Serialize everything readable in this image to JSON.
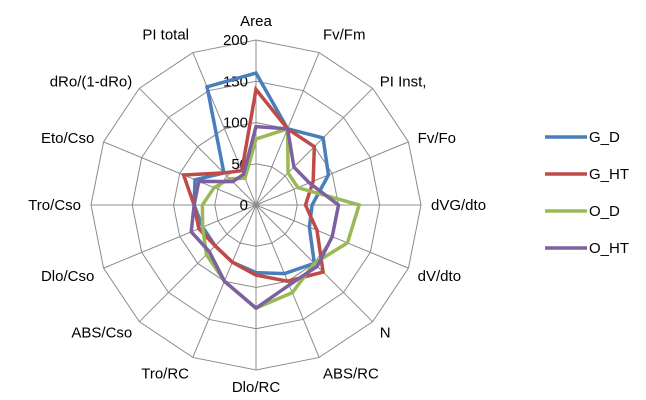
{
  "chart_data": {
    "type": "radar",
    "axes": [
      "Area",
      "Fv/Fm",
      "PI Inst,",
      "Fv/Fo",
      "dVG/dto",
      "dV/dto",
      "N",
      "ABS/RC",
      "Dlo/RC",
      "Tro/RC",
      "ABS/Cso",
      "Dlo/Cso",
      "Tro/Cso",
      "Eto/Cso",
      "dRo/(1-dRo)",
      "PI total"
    ],
    "rlim": [
      0,
      200
    ],
    "ticks": [
      "0",
      "50",
      "100",
      "150",
      "200"
    ],
    "tick_values": [
      0,
      50,
      100,
      150,
      200
    ],
    "grid": true,
    "legend_position": "right",
    "series": [
      {
        "name": "G_D",
        "color": "#4a7ebb",
        "values": [
          160,
          100,
          115,
          95,
          68,
          70,
          100,
          90,
          82,
          75,
          70,
          70,
          75,
          80,
          55,
          155
        ]
      },
      {
        "name": "G_HT",
        "color": "#be4b48",
        "values": [
          140,
          100,
          100,
          75,
          60,
          80,
          115,
          100,
          85,
          75,
          70,
          75,
          75,
          95,
          55,
          45
        ]
      },
      {
        "name": "O_D",
        "color": "#98b954",
        "values": [
          80,
          100,
          55,
          55,
          125,
          120,
          100,
          115,
          125,
          100,
          85,
          70,
          65,
          55,
          45,
          35
        ]
      },
      {
        "name": "O_HT",
        "color": "#7d60a0",
        "values": [
          95,
          100,
          65,
          70,
          100,
          100,
          105,
          105,
          125,
          100,
          80,
          85,
          75,
          75,
          40,
          40
        ]
      }
    ]
  }
}
